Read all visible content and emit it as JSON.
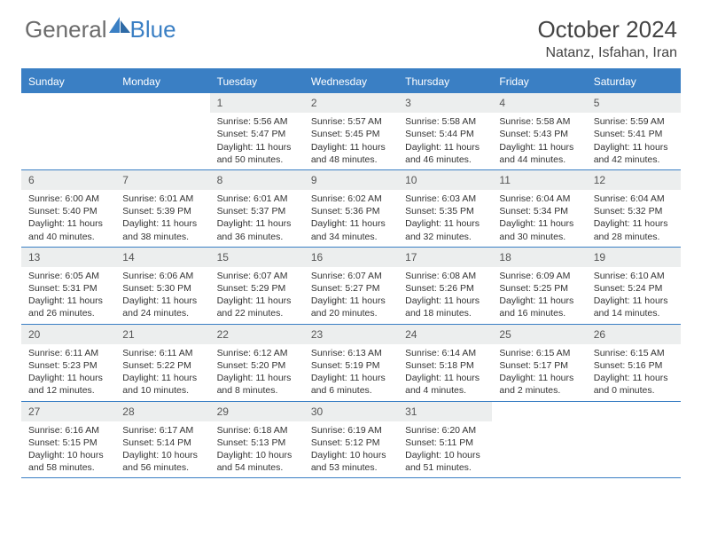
{
  "brand": {
    "part1": "General",
    "part2": "Blue"
  },
  "title": "October 2024",
  "location": "Natanz, Isfahan, Iran",
  "colors": {
    "accent": "#3a7fc4",
    "header_bg": "#eceeee",
    "text": "#333333",
    "muted": "#6b6b6b",
    "bg": "#ffffff"
  },
  "weekdays": [
    "Sunday",
    "Monday",
    "Tuesday",
    "Wednesday",
    "Thursday",
    "Friday",
    "Saturday"
  ],
  "weeks": [
    [
      {
        "n": "",
        "sr": "",
        "ss": "",
        "dl": ""
      },
      {
        "n": "",
        "sr": "",
        "ss": "",
        "dl": ""
      },
      {
        "n": "1",
        "sr": "5:56 AM",
        "ss": "5:47 PM",
        "dl": "11 hours and 50 minutes."
      },
      {
        "n": "2",
        "sr": "5:57 AM",
        "ss": "5:45 PM",
        "dl": "11 hours and 48 minutes."
      },
      {
        "n": "3",
        "sr": "5:58 AM",
        "ss": "5:44 PM",
        "dl": "11 hours and 46 minutes."
      },
      {
        "n": "4",
        "sr": "5:58 AM",
        "ss": "5:43 PM",
        "dl": "11 hours and 44 minutes."
      },
      {
        "n": "5",
        "sr": "5:59 AM",
        "ss": "5:41 PM",
        "dl": "11 hours and 42 minutes."
      }
    ],
    [
      {
        "n": "6",
        "sr": "6:00 AM",
        "ss": "5:40 PM",
        "dl": "11 hours and 40 minutes."
      },
      {
        "n": "7",
        "sr": "6:01 AM",
        "ss": "5:39 PM",
        "dl": "11 hours and 38 minutes."
      },
      {
        "n": "8",
        "sr": "6:01 AM",
        "ss": "5:37 PM",
        "dl": "11 hours and 36 minutes."
      },
      {
        "n": "9",
        "sr": "6:02 AM",
        "ss": "5:36 PM",
        "dl": "11 hours and 34 minutes."
      },
      {
        "n": "10",
        "sr": "6:03 AM",
        "ss": "5:35 PM",
        "dl": "11 hours and 32 minutes."
      },
      {
        "n": "11",
        "sr": "6:04 AM",
        "ss": "5:34 PM",
        "dl": "11 hours and 30 minutes."
      },
      {
        "n": "12",
        "sr": "6:04 AM",
        "ss": "5:32 PM",
        "dl": "11 hours and 28 minutes."
      }
    ],
    [
      {
        "n": "13",
        "sr": "6:05 AM",
        "ss": "5:31 PM",
        "dl": "11 hours and 26 minutes."
      },
      {
        "n": "14",
        "sr": "6:06 AM",
        "ss": "5:30 PM",
        "dl": "11 hours and 24 minutes."
      },
      {
        "n": "15",
        "sr": "6:07 AM",
        "ss": "5:29 PM",
        "dl": "11 hours and 22 minutes."
      },
      {
        "n": "16",
        "sr": "6:07 AM",
        "ss": "5:27 PM",
        "dl": "11 hours and 20 minutes."
      },
      {
        "n": "17",
        "sr": "6:08 AM",
        "ss": "5:26 PM",
        "dl": "11 hours and 18 minutes."
      },
      {
        "n": "18",
        "sr": "6:09 AM",
        "ss": "5:25 PM",
        "dl": "11 hours and 16 minutes."
      },
      {
        "n": "19",
        "sr": "6:10 AM",
        "ss": "5:24 PM",
        "dl": "11 hours and 14 minutes."
      }
    ],
    [
      {
        "n": "20",
        "sr": "6:11 AM",
        "ss": "5:23 PM",
        "dl": "11 hours and 12 minutes."
      },
      {
        "n": "21",
        "sr": "6:11 AM",
        "ss": "5:22 PM",
        "dl": "11 hours and 10 minutes."
      },
      {
        "n": "22",
        "sr": "6:12 AM",
        "ss": "5:20 PM",
        "dl": "11 hours and 8 minutes."
      },
      {
        "n": "23",
        "sr": "6:13 AM",
        "ss": "5:19 PM",
        "dl": "11 hours and 6 minutes."
      },
      {
        "n": "24",
        "sr": "6:14 AM",
        "ss": "5:18 PM",
        "dl": "11 hours and 4 minutes."
      },
      {
        "n": "25",
        "sr": "6:15 AM",
        "ss": "5:17 PM",
        "dl": "11 hours and 2 minutes."
      },
      {
        "n": "26",
        "sr": "6:15 AM",
        "ss": "5:16 PM",
        "dl": "11 hours and 0 minutes."
      }
    ],
    [
      {
        "n": "27",
        "sr": "6:16 AM",
        "ss": "5:15 PM",
        "dl": "10 hours and 58 minutes."
      },
      {
        "n": "28",
        "sr": "6:17 AM",
        "ss": "5:14 PM",
        "dl": "10 hours and 56 minutes."
      },
      {
        "n": "29",
        "sr": "6:18 AM",
        "ss": "5:13 PM",
        "dl": "10 hours and 54 minutes."
      },
      {
        "n": "30",
        "sr": "6:19 AM",
        "ss": "5:12 PM",
        "dl": "10 hours and 53 minutes."
      },
      {
        "n": "31",
        "sr": "6:20 AM",
        "ss": "5:11 PM",
        "dl": "10 hours and 51 minutes."
      },
      {
        "n": "",
        "sr": "",
        "ss": "",
        "dl": ""
      },
      {
        "n": "",
        "sr": "",
        "ss": "",
        "dl": ""
      }
    ]
  ],
  "labels": {
    "sunrise": "Sunrise: ",
    "sunset": "Sunset: ",
    "daylight": "Daylight: "
  }
}
